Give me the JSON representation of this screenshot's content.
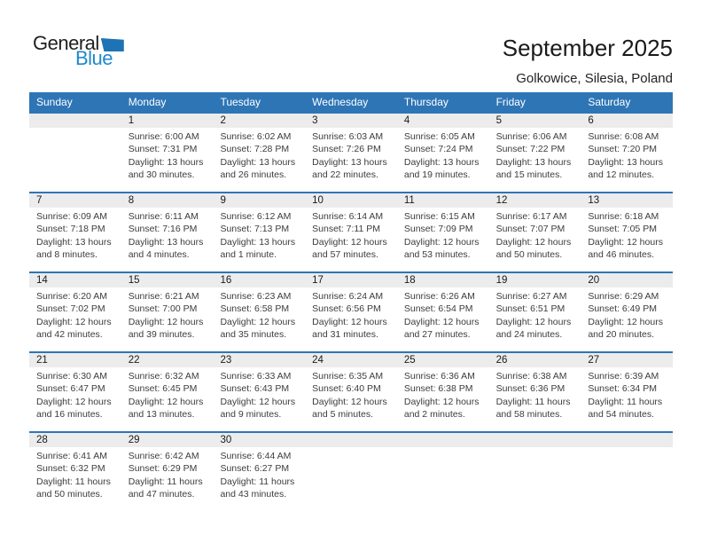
{
  "logo": {
    "part1": "General",
    "part2": "Blue"
  },
  "header": {
    "title": "September 2025",
    "subtitle": "Golkowice, Silesia, Poland"
  },
  "colors": {
    "header_blue": "#2e75b6",
    "separator_blue": "#2e75b6",
    "band_gray": "#ececec",
    "logo_triangle_blue": "#1e73b5",
    "logo_text_blue": "#2088cb",
    "cell_text": "#3c3c3c"
  },
  "calendar": {
    "day_headers": [
      "Sunday",
      "Monday",
      "Tuesday",
      "Wednesday",
      "Thursday",
      "Friday",
      "Saturday"
    ],
    "weeks": [
      {
        "days": [
          {
            "day": "",
            "lines": []
          },
          {
            "day": "1",
            "lines": [
              "Sunrise: 6:00 AM",
              "Sunset: 7:31 PM",
              "Daylight: 13 hours",
              "and 30 minutes."
            ]
          },
          {
            "day": "2",
            "lines": [
              "Sunrise: 6:02 AM",
              "Sunset: 7:28 PM",
              "Daylight: 13 hours",
              "and 26 minutes."
            ]
          },
          {
            "day": "3",
            "lines": [
              "Sunrise: 6:03 AM",
              "Sunset: 7:26 PM",
              "Daylight: 13 hours",
              "and 22 minutes."
            ]
          },
          {
            "day": "4",
            "lines": [
              "Sunrise: 6:05 AM",
              "Sunset: 7:24 PM",
              "Daylight: 13 hours",
              "and 19 minutes."
            ]
          },
          {
            "day": "5",
            "lines": [
              "Sunrise: 6:06 AM",
              "Sunset: 7:22 PM",
              "Daylight: 13 hours",
              "and 15 minutes."
            ]
          },
          {
            "day": "6",
            "lines": [
              "Sunrise: 6:08 AM",
              "Sunset: 7:20 PM",
              "Daylight: 13 hours",
              "and 12 minutes."
            ]
          }
        ]
      },
      {
        "days": [
          {
            "day": "7",
            "lines": [
              "Sunrise: 6:09 AM",
              "Sunset: 7:18 PM",
              "Daylight: 13 hours",
              "and 8 minutes."
            ]
          },
          {
            "day": "8",
            "lines": [
              "Sunrise: 6:11 AM",
              "Sunset: 7:16 PM",
              "Daylight: 13 hours",
              "and 4 minutes."
            ]
          },
          {
            "day": "9",
            "lines": [
              "Sunrise: 6:12 AM",
              "Sunset: 7:13 PM",
              "Daylight: 13 hours",
              "and 1 minute."
            ]
          },
          {
            "day": "10",
            "lines": [
              "Sunrise: 6:14 AM",
              "Sunset: 7:11 PM",
              "Daylight: 12 hours",
              "and 57 minutes."
            ]
          },
          {
            "day": "11",
            "lines": [
              "Sunrise: 6:15 AM",
              "Sunset: 7:09 PM",
              "Daylight: 12 hours",
              "and 53 minutes."
            ]
          },
          {
            "day": "12",
            "lines": [
              "Sunrise: 6:17 AM",
              "Sunset: 7:07 PM",
              "Daylight: 12 hours",
              "and 50 minutes."
            ]
          },
          {
            "day": "13",
            "lines": [
              "Sunrise: 6:18 AM",
              "Sunset: 7:05 PM",
              "Daylight: 12 hours",
              "and 46 minutes."
            ]
          }
        ]
      },
      {
        "days": [
          {
            "day": "14",
            "lines": [
              "Sunrise: 6:20 AM",
              "Sunset: 7:02 PM",
              "Daylight: 12 hours",
              "and 42 minutes."
            ]
          },
          {
            "day": "15",
            "lines": [
              "Sunrise: 6:21 AM",
              "Sunset: 7:00 PM",
              "Daylight: 12 hours",
              "and 39 minutes."
            ]
          },
          {
            "day": "16",
            "lines": [
              "Sunrise: 6:23 AM",
              "Sunset: 6:58 PM",
              "Daylight: 12 hours",
              "and 35 minutes."
            ]
          },
          {
            "day": "17",
            "lines": [
              "Sunrise: 6:24 AM",
              "Sunset: 6:56 PM",
              "Daylight: 12 hours",
              "and 31 minutes."
            ]
          },
          {
            "day": "18",
            "lines": [
              "Sunrise: 6:26 AM",
              "Sunset: 6:54 PM",
              "Daylight: 12 hours",
              "and 27 minutes."
            ]
          },
          {
            "day": "19",
            "lines": [
              "Sunrise: 6:27 AM",
              "Sunset: 6:51 PM",
              "Daylight: 12 hours",
              "and 24 minutes."
            ]
          },
          {
            "day": "20",
            "lines": [
              "Sunrise: 6:29 AM",
              "Sunset: 6:49 PM",
              "Daylight: 12 hours",
              "and 20 minutes."
            ]
          }
        ]
      },
      {
        "days": [
          {
            "day": "21",
            "lines": [
              "Sunrise: 6:30 AM",
              "Sunset: 6:47 PM",
              "Daylight: 12 hours",
              "and 16 minutes."
            ]
          },
          {
            "day": "22",
            "lines": [
              "Sunrise: 6:32 AM",
              "Sunset: 6:45 PM",
              "Daylight: 12 hours",
              "and 13 minutes."
            ]
          },
          {
            "day": "23",
            "lines": [
              "Sunrise: 6:33 AM",
              "Sunset: 6:43 PM",
              "Daylight: 12 hours",
              "and 9 minutes."
            ]
          },
          {
            "day": "24",
            "lines": [
              "Sunrise: 6:35 AM",
              "Sunset: 6:40 PM",
              "Daylight: 12 hours",
              "and 5 minutes."
            ]
          },
          {
            "day": "25",
            "lines": [
              "Sunrise: 6:36 AM",
              "Sunset: 6:38 PM",
              "Daylight: 12 hours",
              "and 2 minutes."
            ]
          },
          {
            "day": "26",
            "lines": [
              "Sunrise: 6:38 AM",
              "Sunset: 6:36 PM",
              "Daylight: 11 hours",
              "and 58 minutes."
            ]
          },
          {
            "day": "27",
            "lines": [
              "Sunrise: 6:39 AM",
              "Sunset: 6:34 PM",
              "Daylight: 11 hours",
              "and 54 minutes."
            ]
          }
        ]
      },
      {
        "days": [
          {
            "day": "28",
            "lines": [
              "Sunrise: 6:41 AM",
              "Sunset: 6:32 PM",
              "Daylight: 11 hours",
              "and 50 minutes."
            ]
          },
          {
            "day": "29",
            "lines": [
              "Sunrise: 6:42 AM",
              "Sunset: 6:29 PM",
              "Daylight: 11 hours",
              "and 47 minutes."
            ]
          },
          {
            "day": "30",
            "lines": [
              "Sunrise: 6:44 AM",
              "Sunset: 6:27 PM",
              "Daylight: 11 hours",
              "and 43 minutes."
            ]
          },
          {
            "day": "",
            "lines": []
          },
          {
            "day": "",
            "lines": []
          },
          {
            "day": "",
            "lines": []
          },
          {
            "day": "",
            "lines": []
          }
        ]
      }
    ]
  }
}
